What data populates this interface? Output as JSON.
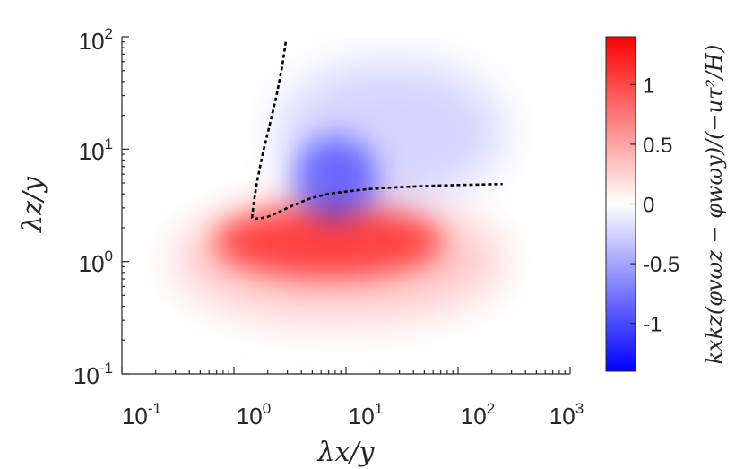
{
  "chart_data": {
    "type": "heatmap",
    "xlabel": "λx/y",
    "ylabel": "λz/y",
    "xscale": "log",
    "yscale": "log",
    "xlim": [
      0.1,
      1000
    ],
    "ylim": [
      0.1,
      100
    ],
    "xticks": [
      {
        "base": "10",
        "exp": "-1"
      },
      {
        "base": "10",
        "exp": "0"
      },
      {
        "base": "10",
        "exp": "1"
      },
      {
        "base": "10",
        "exp": "2"
      },
      {
        "base": "10",
        "exp": "3"
      }
    ],
    "yticks": [
      {
        "base": "10",
        "exp": "-1"
      },
      {
        "base": "10",
        "exp": "0"
      },
      {
        "base": "10",
        "exp": "1"
      },
      {
        "base": "10",
        "exp": "2"
      }
    ],
    "colormap": {
      "type": "diverging",
      "negative_color": "#0000ff",
      "zero_color": "#ffffff",
      "positive_color": "#ff0000",
      "range": [
        -1.4,
        1.4
      ]
    },
    "colorbar": {
      "label": "kxkz(φvωz − φwωy)/(−uτ²/H)",
      "ticks": [
        "-1",
        "-0.5",
        "0",
        "0.5",
        "1"
      ],
      "tick_values": [
        -1,
        -0.5,
        0,
        0.5,
        1
      ],
      "placement": "right"
    },
    "grid": false,
    "regions": [
      {
        "sign": "positive",
        "peak_value": 1.1,
        "center": {
          "x": 7,
          "y": 1.5
        },
        "x_extent": [
          0.3,
          250
        ],
        "y_extent": [
          0.3,
          3.5
        ]
      },
      {
        "sign": "negative",
        "peak_value": -0.85,
        "center": {
          "x": 8,
          "y": 5.5
        },
        "x_extent": [
          2.5,
          250
        ],
        "y_extent": [
          3.5,
          60
        ]
      }
    ],
    "zero_contour": {
      "style": "dashed",
      "color": "#000000",
      "x": [
        2.9,
        2.7,
        2.4,
        2.1,
        1.8,
        1.6,
        1.5,
        1.45,
        1.5,
        1.7,
        2.0,
        2.5,
        3.0,
        4.0,
        5.0,
        7.0,
        10,
        15,
        25,
        50,
        100,
        250
      ],
      "y": [
        90,
        55,
        30,
        17,
        9,
        5,
        3.3,
        2.45,
        2.4,
        2.42,
        2.5,
        2.75,
        3.0,
        3.4,
        3.7,
        4.0,
        4.2,
        4.4,
        4.55,
        4.7,
        4.8,
        4.9
      ]
    }
  }
}
